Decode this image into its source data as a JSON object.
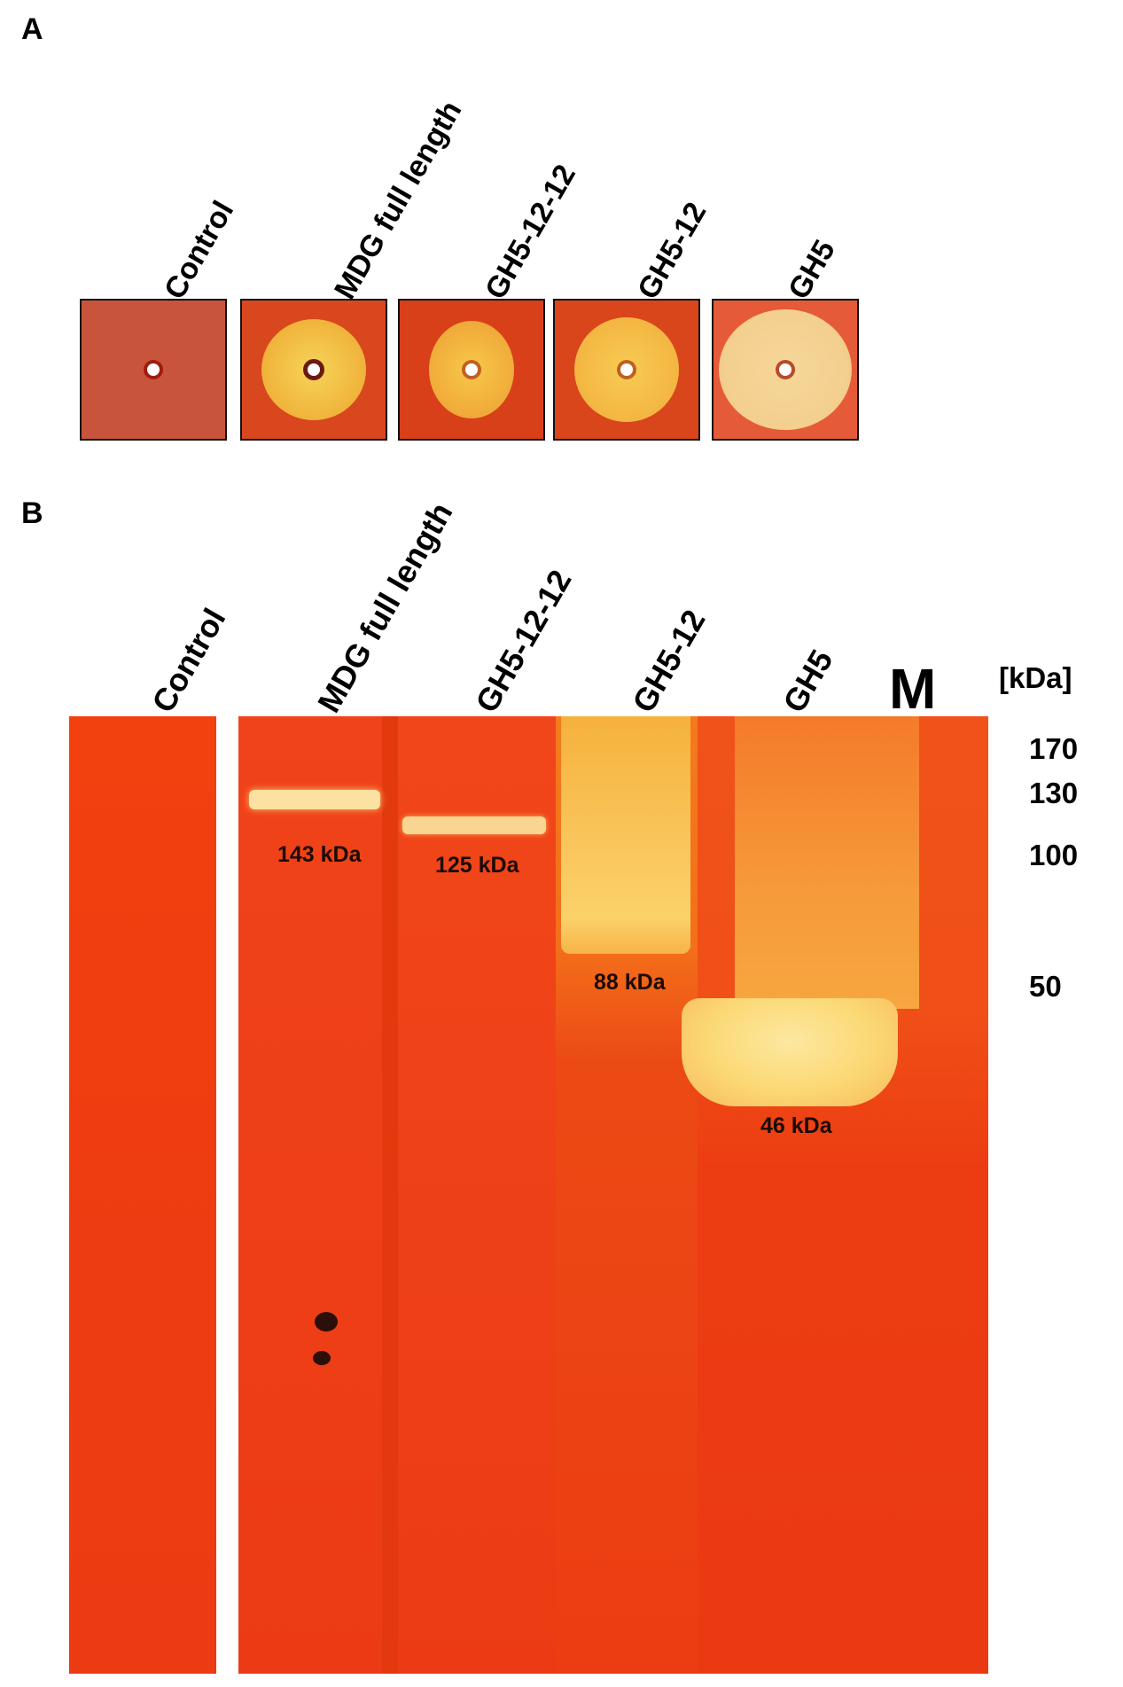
{
  "panel_a": {
    "letter": "A",
    "lanes": [
      "Control",
      "MDG full length",
      "GH5-12-12",
      "GH5-12",
      "GH5"
    ]
  },
  "panel_b": {
    "letter": "B",
    "lanes": [
      "Control",
      "MDG full length",
      "GH5-12-12",
      "GH5-12",
      "GH5"
    ],
    "marker_lane": "M",
    "unit": "[kDa]",
    "markers": [
      "170",
      "130",
      "100",
      "50"
    ],
    "bands": [
      "143 kDa",
      "125 kDa",
      "88 kDa",
      "46 kDa"
    ]
  },
  "colors": {
    "gel_background": "#ee3a10",
    "activity_band": "#fdd36a",
    "plate_background": "#d6401c",
    "clear_zone": "#f1b340"
  }
}
